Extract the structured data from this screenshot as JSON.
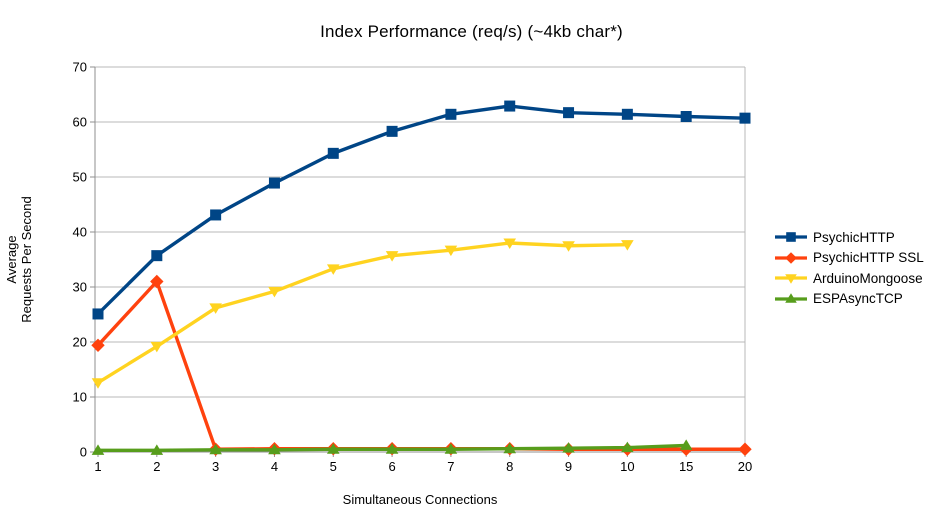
{
  "chart_data": {
    "type": "line",
    "title": "Index Performance (req/s) (~4kb char*)",
    "xlabel": "Simultaneous Connections",
    "ylabel_lines": [
      "Average",
      "Requests Per Second"
    ],
    "categories": [
      "1",
      "2",
      "3",
      "4",
      "5",
      "6",
      "7",
      "8",
      "9",
      "10",
      "15",
      "20"
    ],
    "ylim": [
      0,
      70
    ],
    "ytick_step": 10,
    "yticks": [
      0,
      10,
      20,
      30,
      40,
      50,
      60,
      70
    ],
    "grid": "horizontal",
    "legend_position": "right",
    "series": [
      {
        "name": "PsychicHTTP",
        "color": "#004586",
        "marker": "square",
        "values": [
          25.1,
          35.7,
          43.1,
          48.9,
          54.3,
          58.3,
          61.4,
          62.9,
          61.7,
          61.4,
          61.0,
          60.7
        ]
      },
      {
        "name": "PsychicHTTP SSL",
        "color": "#FF420E",
        "marker": "diamond",
        "values": [
          19.4,
          31.0,
          0.5,
          0.6,
          0.6,
          0.6,
          0.6,
          0.6,
          0.5,
          0.5,
          0.5,
          0.5
        ]
      },
      {
        "name": "ArduinoMongoose",
        "color": "#FFD320",
        "marker": "triangle-down",
        "values": [
          12.6,
          19.2,
          26.2,
          29.2,
          33.3,
          35.7,
          36.7,
          38.0,
          37.5,
          37.7,
          null,
          null
        ]
      },
      {
        "name": "ESPAsyncTCP",
        "color": "#579D1C",
        "marker": "triangle-up",
        "values": [
          0.3,
          0.3,
          0.4,
          0.4,
          0.5,
          0.5,
          0.5,
          0.6,
          0.7,
          0.8,
          1.2,
          null
        ]
      }
    ],
    "colors": {
      "grid": "#b8b8b8",
      "axis": "#8f8f8f",
      "background": "#ffffff"
    }
  }
}
